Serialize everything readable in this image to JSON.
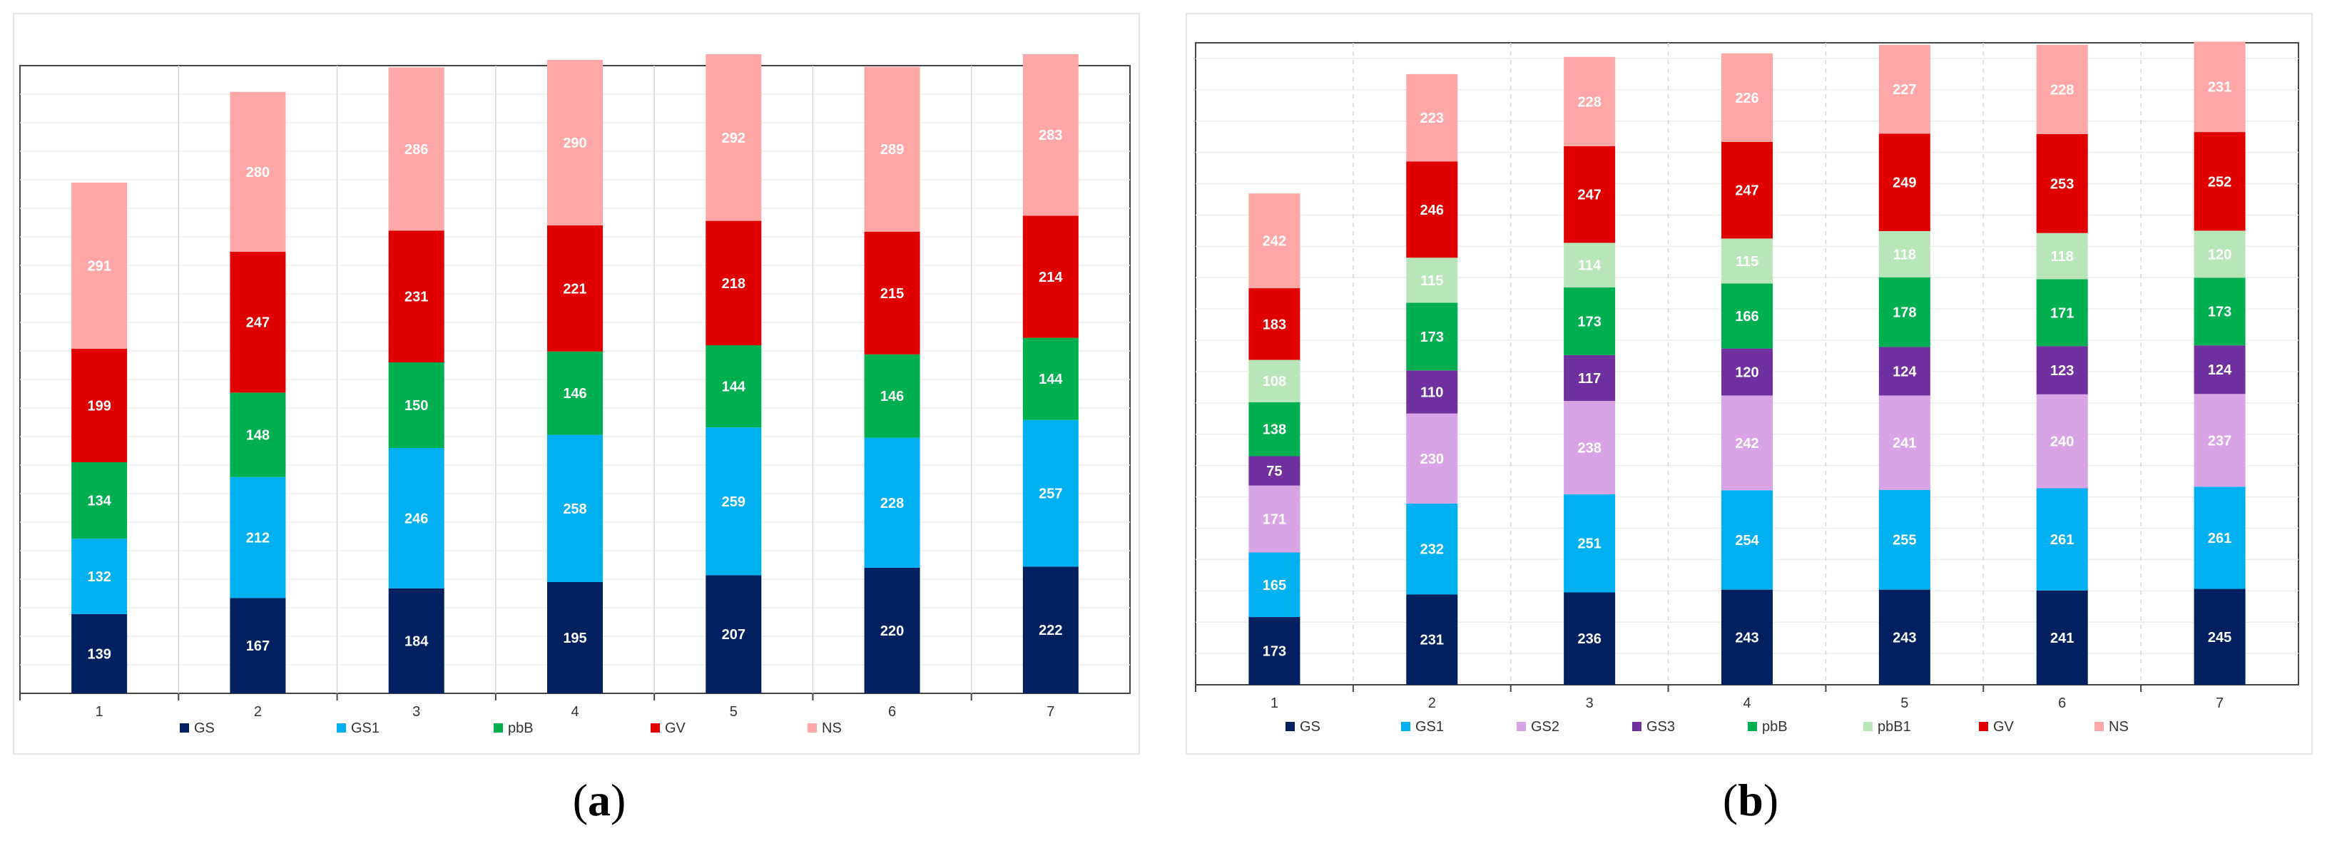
{
  "chart_data": [
    {
      "type": "bar",
      "stacked": true,
      "panel": "(a)",
      "categories": [
        "1",
        "2",
        "3",
        "4",
        "5",
        "6",
        "7"
      ],
      "series": [
        {
          "name": "GS",
          "color": "#002060",
          "values": [
            139,
            167,
            184,
            195,
            207,
            220,
            222
          ]
        },
        {
          "name": "GS1",
          "color": "#00b0f0",
          "values": [
            132,
            212,
            246,
            258,
            259,
            228,
            257
          ]
        },
        {
          "name": "pbB",
          "color": "#00b050",
          "values": [
            134,
            148,
            150,
            146,
            144,
            146,
            144
          ]
        },
        {
          "name": "GV",
          "color": "#e00000",
          "values": [
            199,
            247,
            231,
            221,
            218,
            215,
            214
          ]
        },
        {
          "name": "NS",
          "color": "#ffa6a6",
          "values": [
            291,
            280,
            286,
            290,
            292,
            289,
            283
          ]
        }
      ],
      "ylim": [
        0,
        1100
      ],
      "grid": true,
      "legend": "bottom",
      "title": "",
      "xlabel": "",
      "ylabel": ""
    },
    {
      "type": "bar",
      "stacked": true,
      "panel": "(b)",
      "categories": [
        "1",
        "2",
        "3",
        "4",
        "5",
        "6",
        "7"
      ],
      "series": [
        {
          "name": "GS",
          "color": "#002060",
          "values": [
            173,
            231,
            236,
            243,
            243,
            241,
            245
          ]
        },
        {
          "name": "GS1",
          "color": "#00b0f0",
          "values": [
            165,
            232,
            251,
            254,
            255,
            261,
            261
          ]
        },
        {
          "name": "GS2",
          "color": "#d9a4e6",
          "values": [
            171,
            230,
            238,
            242,
            241,
            240,
            237
          ]
        },
        {
          "name": "GS3",
          "color": "#7030a0",
          "values": [
            75,
            110,
            117,
            120,
            124,
            123,
            124
          ]
        },
        {
          "name": "pbB",
          "color": "#00b050",
          "values": [
            138,
            173,
            173,
            166,
            178,
            171,
            173
          ]
        },
        {
          "name": "pbB1",
          "color": "#b8e6b8",
          "values": [
            108,
            115,
            114,
            115,
            118,
            118,
            120
          ]
        },
        {
          "name": "GV",
          "color": "#e00000",
          "values": [
            183,
            246,
            247,
            247,
            249,
            253,
            252
          ]
        },
        {
          "name": "NS",
          "color": "#ffa6a6",
          "values": [
            242,
            223,
            228,
            226,
            227,
            228,
            231
          ]
        }
      ],
      "ylim": [
        0,
        1640
      ],
      "grid": true,
      "legend": "bottom",
      "title": "",
      "xlabel": "",
      "ylabel": ""
    }
  ],
  "captions": {
    "a": {
      "open": "(",
      "letter": "a",
      "close": ")"
    },
    "b": {
      "open": "(",
      "letter": "b",
      "close": ")"
    }
  }
}
